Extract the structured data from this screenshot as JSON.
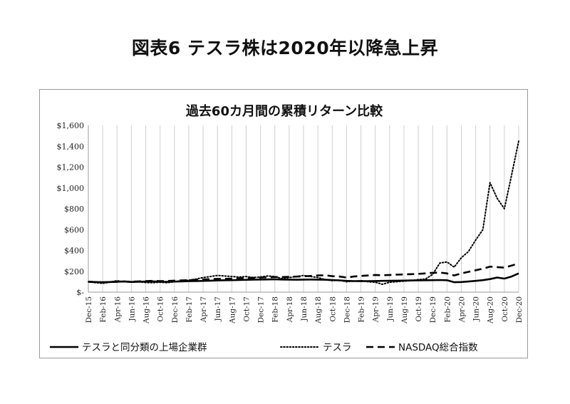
{
  "page": {
    "title": "図表6 テスラ株は2020年以降急上昇"
  },
  "chart_data": {
    "type": "line",
    "title": "過去60カ月間の累積リターン比較",
    "xlabel": "",
    "ylabel": "",
    "ylim": [
      0,
      1600
    ],
    "yticks": [
      0,
      200,
      400,
      600,
      800,
      1000,
      1200,
      1400,
      1600
    ],
    "ytick_labels": [
      "$-",
      "$200",
      "$400",
      "$600",
      "$800",
      "$1,000",
      "$1,200",
      "$1,400",
      "$1,600"
    ],
    "x": [
      "Dec-15",
      "Jan-16",
      "Feb-16",
      "Mar-16",
      "Apr-16",
      "May-16",
      "Jun-16",
      "Jul-16",
      "Aug-16",
      "Sep-16",
      "Oct-16",
      "Nov-16",
      "Dec-16",
      "Jan-17",
      "Feb-17",
      "Mar-17",
      "Apr-17",
      "May-17",
      "Jun-17",
      "Jul-17",
      "Aug-17",
      "Sep-17",
      "Oct-17",
      "Nov-17",
      "Dec-17",
      "Jan-18",
      "Feb-18",
      "Mar-18",
      "Apr-18",
      "May-18",
      "Jun-18",
      "Jul-18",
      "Aug-18",
      "Sep-18",
      "Oct-18",
      "Nov-18",
      "Dec-18",
      "Jan-19",
      "Feb-19",
      "Mar-19",
      "Apr-19",
      "May-19",
      "Jun-19",
      "Jul-19",
      "Aug-19",
      "Sep-19",
      "Oct-19",
      "Nov-19",
      "Dec-19",
      "Jan-20",
      "Feb-20",
      "Mar-20",
      "Apr-20",
      "May-20",
      "Jun-20",
      "Jul-20",
      "Aug-20",
      "Sep-20",
      "Oct-20",
      "Nov-20",
      "Dec-20"
    ],
    "xtick_labels": [
      "Dec-15",
      "Feb-16",
      "Apr-16",
      "Jun-16",
      "Aug-16",
      "Oct-16",
      "Dec-16",
      "Feb-17",
      "Apr-17",
      "Jun-17",
      "Aug-17",
      "Oct-17",
      "Dec-17",
      "Feb-18",
      "Apr-18",
      "Jun-18",
      "Aug-18",
      "Oct-18",
      "Dec-18",
      "Feb-19",
      "Apr-19",
      "Jun-19",
      "Aug-19",
      "Oct-19",
      "Dec-19",
      "Feb-20",
      "Apr-20",
      "Jun-20",
      "Aug-20",
      "Oct-20",
      "Dec-20"
    ],
    "grid": "vertical",
    "legend_position": "bottom",
    "series": [
      {
        "name": "テスラと同分類の上場企業群",
        "style": "solid",
        "values": [
          100,
          97,
          95,
          97,
          100,
          102,
          98,
          100,
          101,
          103,
          100,
          99,
          101,
          103,
          105,
          106,
          108,
          110,
          112,
          114,
          115,
          116,
          118,
          120,
          121,
          122,
          123,
          121,
          120,
          119,
          120,
          121,
          120,
          119,
          116,
          113,
          108,
          106,
          105,
          106,
          107,
          108,
          109,
          110,
          111,
          112,
          113,
          114,
          115,
          116,
          114,
          95,
          97,
          102,
          108,
          115,
          125,
          140,
          130,
          150,
          180
        ]
      },
      {
        "name": "テスラ",
        "style": "dotted",
        "values": [
          100,
          90,
          85,
          95,
          110,
          100,
          95,
          100,
          92,
          90,
          95,
          90,
          100,
          110,
          115,
          125,
          140,
          150,
          160,
          155,
          150,
          145,
          150,
          140,
          145,
          155,
          150,
          130,
          140,
          150,
          160,
          150,
          140,
          120,
          110,
          115,
          100,
          105,
          110,
          100,
          95,
          75,
          95,
          100,
          105,
          110,
          120,
          125,
          170,
          280,
          290,
          240,
          330,
          390,
          500,
          600,
          1050,
          900,
          800,
          1120,
          1450
        ]
      },
      {
        "name": "NASDAQ総合指数",
        "style": "dashed",
        "values": [
          100,
          95,
          93,
          97,
          100,
          102,
          100,
          103,
          106,
          108,
          106,
          107,
          110,
          112,
          115,
          118,
          122,
          125,
          127,
          128,
          130,
          133,
          136,
          138,
          140,
          142,
          145,
          145,
          147,
          149,
          152,
          155,
          160,
          162,
          153,
          150,
          140,
          150,
          155,
          160,
          165,
          162,
          165,
          168,
          170,
          172,
          175,
          180,
          185,
          188,
          180,
          160,
          180,
          195,
          210,
          225,
          245,
          240,
          235,
          255,
          275
        ]
      }
    ]
  }
}
